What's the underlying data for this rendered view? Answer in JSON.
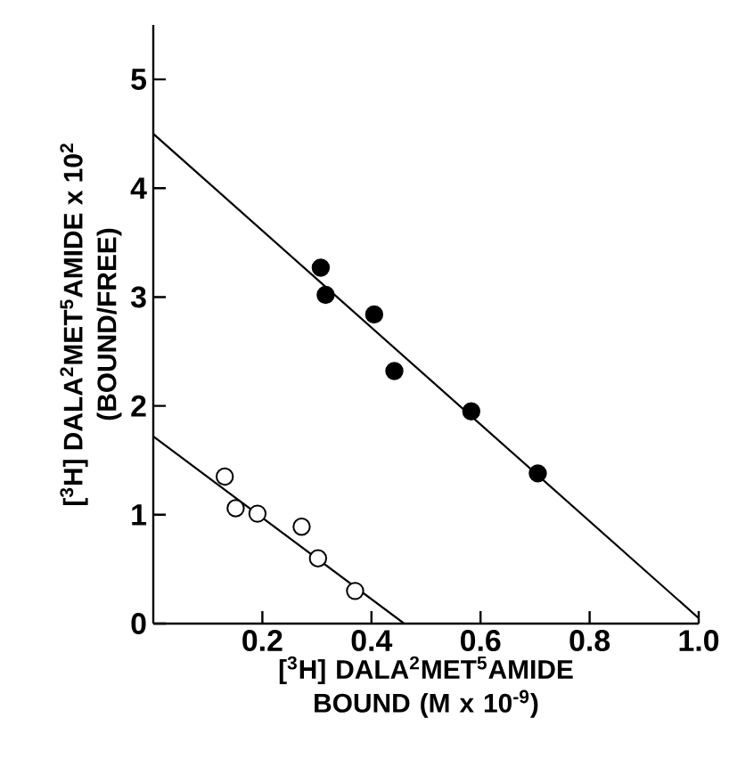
{
  "chart_data": {
    "type": "scatter",
    "xlabel": "[$^{3}$H] DALA$^{2}$MET$^{5}$AMIDE BOUND (M x 10$^{-9}$)",
    "ylabel": "[$^{3}$H] DALA$^{2}$MET$^{5}$AMIDE x 10$^{2}$ (BOUND/FREE)",
    "xlim": [
      0,
      1.0
    ],
    "ylim": [
      0,
      5.5
    ],
    "xticks": [
      0.2,
      0.4,
      0.6,
      0.8,
      {
        "value": 1.0,
        "label": "1.0"
      }
    ],
    "yticks": [
      0,
      1,
      2,
      3,
      4,
      5
    ],
    "grid": false,
    "series": [
      {
        "color": "#000000",
        "marker": "circle",
        "x": [
          0.307,
          0.316,
          0.405,
          0.442,
          0.583,
          0.705
        ],
        "values": [
          3.27,
          3.02,
          2.84,
          2.32,
          1.95,
          1.38
        ]
      },
      {
        "color": "#ffffff",
        "marker": "circle",
        "x": [
          0.131,
          0.151,
          0.191,
          0.272,
          0.302,
          0.37
        ],
        "values": [
          1.35,
          1.06,
          1.01,
          0.89,
          0.6,
          0.3
        ]
      },
      {
        "type": "line",
        "color": "#000000",
        "marker": "none",
        "x": [
          0,
          1.0
        ],
        "values": [
          4.5,
          0.05
        ]
      },
      {
        "type": "line",
        "color": "#000000",
        "marker": "none",
        "x": [
          0,
          0.46
        ],
        "values": [
          1.72,
          0
        ]
      }
    ]
  }
}
